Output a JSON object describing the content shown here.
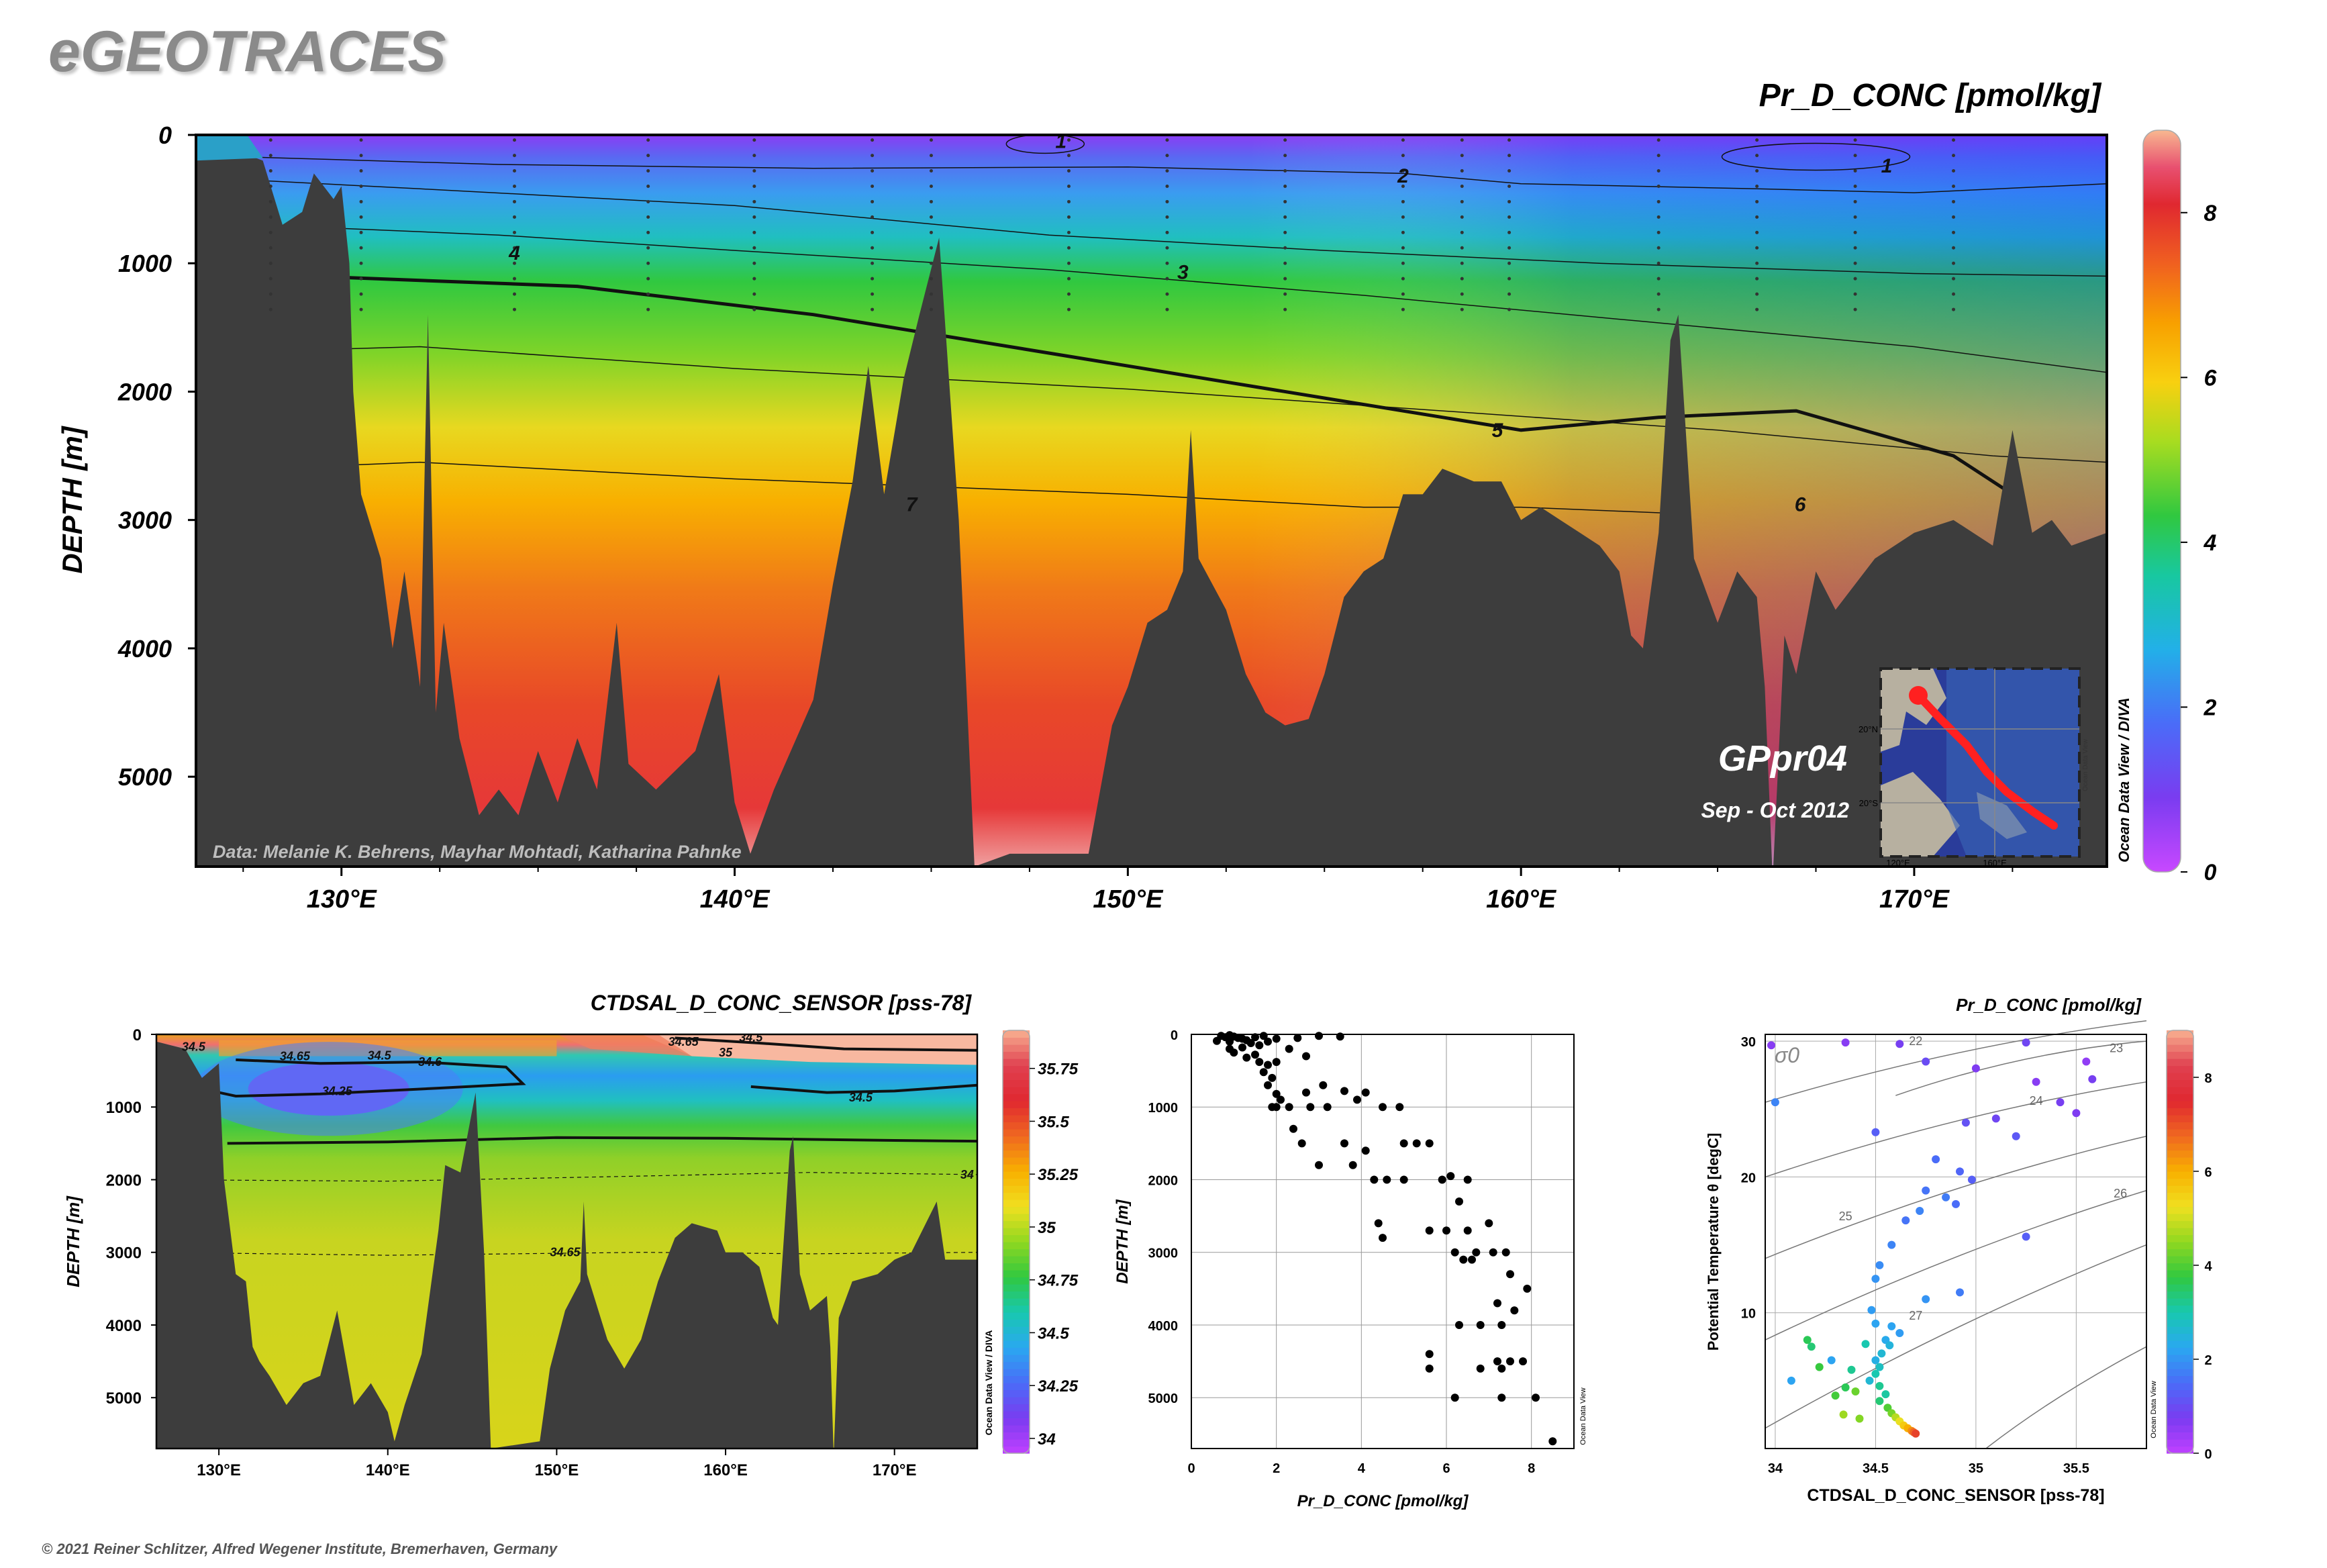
{
  "brand": "eGEOTRACES",
  "copyright": "© 2021 Reiner Schlitzer, Alfred Wegener Institute, Bremerhaven, Germany",
  "colors": {
    "land": "#3d3d3d",
    "contour": "#111111",
    "track": "#ff2020",
    "scatter_black": "#000000"
  },
  "colormap": [
    "#c040ff",
    "#7a3cf0",
    "#4a6cf8",
    "#2aa8f0",
    "#18c8b0",
    "#30c840",
    "#90d820",
    "#f0e020",
    "#f8b000",
    "#f06820",
    "#e02830",
    "#e04050",
    "#f8b090"
  ],
  "chart_data": [
    {
      "id": "main_section",
      "type": "heatmap",
      "title": "Pr_D_CONC [pmol/kg]",
      "ylabel": "DEPTH [m]",
      "xlabel": "",
      "x_ticks": [
        "130°E",
        "140°E",
        "150°E",
        "160°E",
        "170°E"
      ],
      "x_tick_values": [
        130,
        140,
        150,
        160,
        170
      ],
      "xlim": [
        126.3,
        174.9
      ],
      "y_ticks": [
        "0",
        "1000",
        "2000",
        "3000",
        "4000",
        "5000"
      ],
      "y_tick_values": [
        0,
        1000,
        2000,
        3000,
        4000,
        5000
      ],
      "ylim": [
        0,
        5700
      ],
      "colorbar_ticks": [
        "0",
        "2",
        "4",
        "6",
        "8"
      ],
      "colorbar_values": [
        0,
        2,
        4,
        6,
        8
      ],
      "colorbar_range": [
        0,
        9
      ],
      "colorbar_side_label": "Ocean Data View / DIVA",
      "contour_labels": [
        {
          "text": "1",
          "x": 148.3,
          "y": 50
        },
        {
          "text": "1",
          "x": 169.3,
          "y": 240
        },
        {
          "text": "2",
          "x": 157.0,
          "y": 320
        },
        {
          "text": "3",
          "x": 151.4,
          "y": 1070
        },
        {
          "text": "4",
          "x": 134.4,
          "y": 920
        },
        {
          "text": "5",
          "x": 159.4,
          "y": 2300
        },
        {
          "text": "6",
          "x": 167.1,
          "y": 2880
        },
        {
          "text": "7",
          "x": 144.5,
          "y": 2880
        }
      ],
      "annotations": {
        "credit": "Data: Melanie K. Behrens, Mayhar Mohtadi, Katharina Pahnke",
        "cruise": "GPpr04",
        "period": "Sep - Oct 2012"
      },
      "inset_map": {
        "lat_labels": [
          "20°N",
          "20°S"
        ],
        "lon_labels": [
          "120°E",
          "160°E"
        ],
        "side_label": "Ocean Data View"
      }
    },
    {
      "id": "salinity_section",
      "type": "heatmap",
      "title": "CTDSAL_D_CONC_SENSOR [pss-78]",
      "ylabel": "DEPTH [m]",
      "xlabel": "",
      "x_ticks": [
        "130°E",
        "140°E",
        "150°E",
        "160°E",
        "170°E"
      ],
      "x_tick_values": [
        130,
        140,
        150,
        160,
        170
      ],
      "xlim": [
        126.3,
        174.9
      ],
      "y_ticks": [
        "0",
        "1000",
        "2000",
        "3000",
        "4000",
        "5000"
      ],
      "y_tick_values": [
        0,
        1000,
        2000,
        3000,
        4000,
        5000
      ],
      "ylim": [
        0,
        5700
      ],
      "colorbar_ticks": [
        "34",
        "34.25",
        "34.5",
        "34.75",
        "35",
        "35.25",
        "35.5",
        "35.75"
      ],
      "colorbar_values": [
        34,
        34.25,
        34.5,
        34.75,
        35,
        35.25,
        35.5,
        35.75
      ],
      "colorbar_range": [
        33.93,
        35.93
      ],
      "colorbar_side_label": "Ocean Data View / DIVA",
      "contour_labels": [
        {
          "text": "34.5",
          "x": 128.5,
          "y": 170
        },
        {
          "text": "34.65",
          "x": 134.5,
          "y": 300
        },
        {
          "text": "34.5",
          "x": 139.5,
          "y": 290
        },
        {
          "text": "34.6",
          "x": 142.5,
          "y": 380
        },
        {
          "text": "34.25",
          "x": 137.0,
          "y": 780
        },
        {
          "text": "34.5",
          "x": 161.5,
          "y": 40
        },
        {
          "text": "34.65",
          "x": 157.5,
          "y": 100
        },
        {
          "text": "35",
          "x": 160.0,
          "y": 250
        },
        {
          "text": "34.5",
          "x": 168.0,
          "y": 870
        },
        {
          "text": "34",
          "x": 174.3,
          "y": 1930
        },
        {
          "text": "34.65",
          "x": 150.5,
          "y": 3000
        }
      ]
    },
    {
      "id": "profile_scatter",
      "type": "scatter",
      "title": "",
      "xlabel": "Pr_D_CONC [pmol/kg]",
      "ylabel": "DEPTH [m]",
      "side_label": "Ocean Data View",
      "xlim": [
        0,
        9
      ],
      "ylim": [
        0,
        5700
      ],
      "x_ticks": [
        "0",
        "2",
        "4",
        "6",
        "8"
      ],
      "x_tick_values": [
        0,
        2,
        4,
        6,
        8
      ],
      "y_ticks": [
        "0",
        "1000",
        "2000",
        "3000",
        "4000",
        "5000"
      ],
      "y_tick_values": [
        0,
        1000,
        2000,
        3000,
        4000,
        5000
      ],
      "points": [
        [
          0.7,
          20
        ],
        [
          0.8,
          40
        ],
        [
          0.9,
          10
        ],
        [
          1.0,
          30
        ],
        [
          1.1,
          50
        ],
        [
          1.2,
          60
        ],
        [
          0.6,
          90
        ],
        [
          0.9,
          100
        ],
        [
          1.3,
          80
        ],
        [
          1.5,
          40
        ],
        [
          1.7,
          20
        ],
        [
          1.4,
          120
        ],
        [
          1.6,
          150
        ],
        [
          1.8,
          100
        ],
        [
          2.0,
          60
        ],
        [
          1.2,
          180
        ],
        [
          0.9,
          200
        ],
        [
          1.0,
          250
        ],
        [
          1.5,
          280
        ],
        [
          1.3,
          320
        ],
        [
          1.6,
          380
        ],
        [
          1.8,
          420
        ],
        [
          2.0,
          380
        ],
        [
          1.7,
          520
        ],
        [
          1.9,
          600
        ],
        [
          2.5,
          50
        ],
        [
          3.0,
          20
        ],
        [
          3.5,
          30
        ],
        [
          2.3,
          200
        ],
        [
          2.7,
          300
        ],
        [
          1.8,
          700
        ],
        [
          2.0,
          820
        ],
        [
          2.1,
          900
        ],
        [
          1.9,
          1000
        ],
        [
          2.0,
          1000
        ],
        [
          2.3,
          1000
        ],
        [
          2.7,
          800
        ],
        [
          3.1,
          700
        ],
        [
          3.6,
          780
        ],
        [
          3.9,
          900
        ],
        [
          4.1,
          800
        ],
        [
          2.8,
          1000
        ],
        [
          3.2,
          1000
        ],
        [
          4.5,
          1000
        ],
        [
          4.9,
          1000
        ],
        [
          2.4,
          1300
        ],
        [
          2.6,
          1500
        ],
        [
          3.6,
          1500
        ],
        [
          4.1,
          1600
        ],
        [
          5.0,
          1500
        ],
        [
          5.3,
          1500
        ],
        [
          5.6,
          1500
        ],
        [
          3.0,
          1800
        ],
        [
          3.8,
          1800
        ],
        [
          4.3,
          2000
        ],
        [
          4.6,
          2000
        ],
        [
          5.0,
          2000
        ],
        [
          5.9,
          2000
        ],
        [
          6.1,
          1950
        ],
        [
          6.5,
          2000
        ],
        [
          6.3,
          2300
        ],
        [
          4.4,
          2600
        ],
        [
          4.5,
          2800
        ],
        [
          5.6,
          2700
        ],
        [
          6.0,
          2700
        ],
        [
          6.5,
          2700
        ],
        [
          7.0,
          2600
        ],
        [
          6.2,
          3000
        ],
        [
          6.7,
          3000
        ],
        [
          7.1,
          3000
        ],
        [
          7.4,
          3000
        ],
        [
          6.4,
          3100
        ],
        [
          6.6,
          3100
        ],
        [
          7.5,
          3300
        ],
        [
          7.9,
          3500
        ],
        [
          7.2,
          3700
        ],
        [
          7.6,
          3800
        ],
        [
          6.8,
          4000
        ],
        [
          6.3,
          4000
        ],
        [
          7.3,
          4000
        ],
        [
          5.6,
          4400
        ],
        [
          5.6,
          4600
        ],
        [
          7.2,
          4500
        ],
        [
          7.5,
          4500
        ],
        [
          7.8,
          4500
        ],
        [
          6.8,
          4600
        ],
        [
          7.3,
          4600
        ],
        [
          6.2,
          5000
        ],
        [
          7.3,
          5000
        ],
        [
          8.1,
          5000
        ],
        [
          8.5,
          5600
        ]
      ]
    },
    {
      "id": "ts_diagram",
      "type": "scatter",
      "title": "Pr_D_CONC [pmol/kg]",
      "xlabel": "CTDSAL_D_CONC_SENSOR [pss-78]",
      "ylabel": "Potential Temperature θ [degC]",
      "sigma_label": "σ0",
      "side_label": "Ocean Data View",
      "xlim": [
        33.95,
        35.85
      ],
      "ylim": [
        0,
        30.5
      ],
      "x_ticks": [
        "34",
        "34.5",
        "35",
        "35.5"
      ],
      "x_tick_values": [
        34,
        34.5,
        35,
        35.5
      ],
      "y_ticks": [
        "10",
        "20",
        "30"
      ],
      "y_tick_values": [
        10,
        20,
        30
      ],
      "density_labels": [
        "22",
        "23",
        "24",
        "25",
        "26",
        "27"
      ],
      "colorbar_ticks": [
        "0",
        "2",
        "4",
        "6",
        "8"
      ],
      "colorbar_values": [
        0,
        2,
        4,
        6,
        8
      ],
      "colorbar_range": [
        0,
        9
      ],
      "points": [
        {
          "s": 34.62,
          "t": 29.8,
          "c": 0.8
        },
        {
          "s": 34.35,
          "t": 29.9,
          "c": 0.6
        },
        {
          "s": 35.25,
          "t": 29.9,
          "c": 0.9
        },
        {
          "s": 35.0,
          "t": 28.0,
          "c": 0.7
        },
        {
          "s": 35.55,
          "t": 28.5,
          "c": 0.5
        },
        {
          "s": 35.3,
          "t": 27.0,
          "c": 0.6
        },
        {
          "s": 35.58,
          "t": 27.2,
          "c": 0.8
        },
        {
          "s": 34.75,
          "t": 28.5,
          "c": 1.0
        },
        {
          "s": 35.42,
          "t": 25.5,
          "c": 0.8
        },
        {
          "s": 35.1,
          "t": 24.3,
          "c": 0.9
        },
        {
          "s": 35.5,
          "t": 24.7,
          "c": 0.7
        },
        {
          "s": 34.95,
          "t": 24.0,
          "c": 1.1
        },
        {
          "s": 34.5,
          "t": 23.3,
          "c": 1.3
        },
        {
          "s": 35.2,
          "t": 23.0,
          "c": 1.2
        },
        {
          "s": 34.8,
          "t": 21.3,
          "c": 1.5
        },
        {
          "s": 34.92,
          "t": 20.4,
          "c": 1.4
        },
        {
          "s": 34.98,
          "t": 19.8,
          "c": 1.3
        },
        {
          "s": 34.75,
          "t": 19.0,
          "c": 1.6
        },
        {
          "s": 34.85,
          "t": 18.5,
          "c": 1.7
        },
        {
          "s": 34.9,
          "t": 18.0,
          "c": 1.5
        },
        {
          "s": 34.72,
          "t": 17.5,
          "c": 1.8
        },
        {
          "s": 34.65,
          "t": 16.8,
          "c": 1.6
        },
        {
          "s": 35.25,
          "t": 15.6,
          "c": 1.3
        },
        {
          "s": 34.58,
          "t": 15.0,
          "c": 1.8
        },
        {
          "s": 34.52,
          "t": 13.5,
          "c": 1.9
        },
        {
          "s": 34.5,
          "t": 12.5,
          "c": 2.0
        },
        {
          "s": 34.92,
          "t": 11.5,
          "c": 1.7
        },
        {
          "s": 34.75,
          "t": 11.0,
          "c": 2.0
        },
        {
          "s": 34.48,
          "t": 10.2,
          "c": 2.1
        },
        {
          "s": 34.5,
          "t": 9.2,
          "c": 2.2
        },
        {
          "s": 34.58,
          "t": 9.0,
          "c": 2.2
        },
        {
          "s": 34.62,
          "t": 8.5,
          "c": 2.1
        },
        {
          "s": 34.55,
          "t": 8.0,
          "c": 2.3
        },
        {
          "s": 34.57,
          "t": 7.6,
          "c": 2.5
        },
        {
          "s": 34.53,
          "t": 7.0,
          "c": 2.6
        },
        {
          "s": 34.5,
          "t": 6.5,
          "c": 2.4
        },
        {
          "s": 34.52,
          "t": 6.0,
          "c": 2.8
        },
        {
          "s": 34.5,
          "t": 5.5,
          "c": 3.0
        },
        {
          "s": 34.47,
          "t": 5.0,
          "c": 2.6
        },
        {
          "s": 34.52,
          "t": 4.6,
          "c": 3.2
        },
        {
          "s": 34.55,
          "t": 4.0,
          "c": 3.1
        },
        {
          "s": 34.52,
          "t": 3.5,
          "c": 3.4
        },
        {
          "s": 34.56,
          "t": 3.0,
          "c": 4.0
        },
        {
          "s": 34.58,
          "t": 2.6,
          "c": 4.3
        },
        {
          "s": 34.6,
          "t": 2.3,
          "c": 4.8
        },
        {
          "s": 34.62,
          "t": 2.0,
          "c": 5.2
        },
        {
          "s": 34.64,
          "t": 1.7,
          "c": 5.6
        },
        {
          "s": 34.66,
          "t": 1.5,
          "c": 6.0
        },
        {
          "s": 34.68,
          "t": 1.3,
          "c": 6.4
        },
        {
          "s": 34.69,
          "t": 1.2,
          "c": 6.8
        },
        {
          "s": 34.7,
          "t": 1.1,
          "c": 7.2
        },
        {
          "s": 34.16,
          "t": 8.0,
          "c": 3.6
        },
        {
          "s": 34.18,
          "t": 7.5,
          "c": 3.4
        },
        {
          "s": 34.22,
          "t": 6.0,
          "c": 3.8
        },
        {
          "s": 34.38,
          "t": 5.8,
          "c": 3.2
        },
        {
          "s": 34.35,
          "t": 4.5,
          "c": 3.6
        },
        {
          "s": 34.4,
          "t": 4.2,
          "c": 4.2
        },
        {
          "s": 34.3,
          "t": 3.9,
          "c": 3.9
        },
        {
          "s": 34.34,
          "t": 2.5,
          "c": 4.6
        },
        {
          "s": 34.42,
          "t": 2.2,
          "c": 4.4
        },
        {
          "s": 34.28,
          "t": 6.5,
          "c": 2.2
        },
        {
          "s": 34.45,
          "t": 7.7,
          "c": 3.0
        },
        {
          "s": 34.08,
          "t": 5.0,
          "c": 2.2
        },
        {
          "s": 34.0,
          "t": 25.5,
          "c": 1.8
        },
        {
          "s": 33.98,
          "t": 29.7,
          "c": 0.6
        }
      ]
    }
  ]
}
